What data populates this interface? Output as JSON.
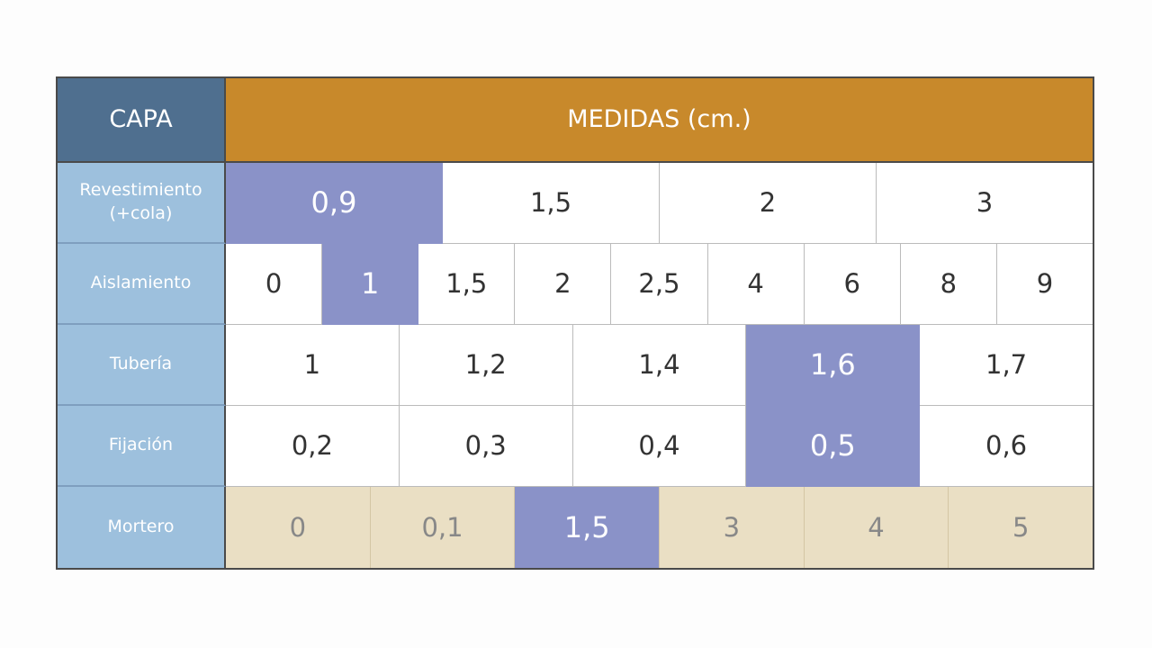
{
  "header": {
    "capa": "CAPA",
    "medidas": "MEDIDAS (cm.)"
  },
  "rows": [
    {
      "label": "Revestimiento (+cola)",
      "cells": [
        "0,9",
        "1,5",
        "2",
        "3"
      ]
    },
    {
      "label": "Aislamiento",
      "cells": [
        "0",
        "1",
        "1,5",
        "2",
        "2,5",
        "4",
        "6",
        "8",
        "9"
      ]
    },
    {
      "label": "Tubería",
      "cells": [
        "1",
        "1,2",
        "1,4",
        "1,6",
        "1,7"
      ]
    },
    {
      "label": "Fijación",
      "cells": [
        "0,2",
        "0,3",
        "0,4",
        "0,5",
        "0,6"
      ]
    },
    {
      "label": "Mortero",
      "cells": [
        "0",
        "0,1",
        "1,5",
        "3",
        "4",
        "5"
      ]
    }
  ]
}
